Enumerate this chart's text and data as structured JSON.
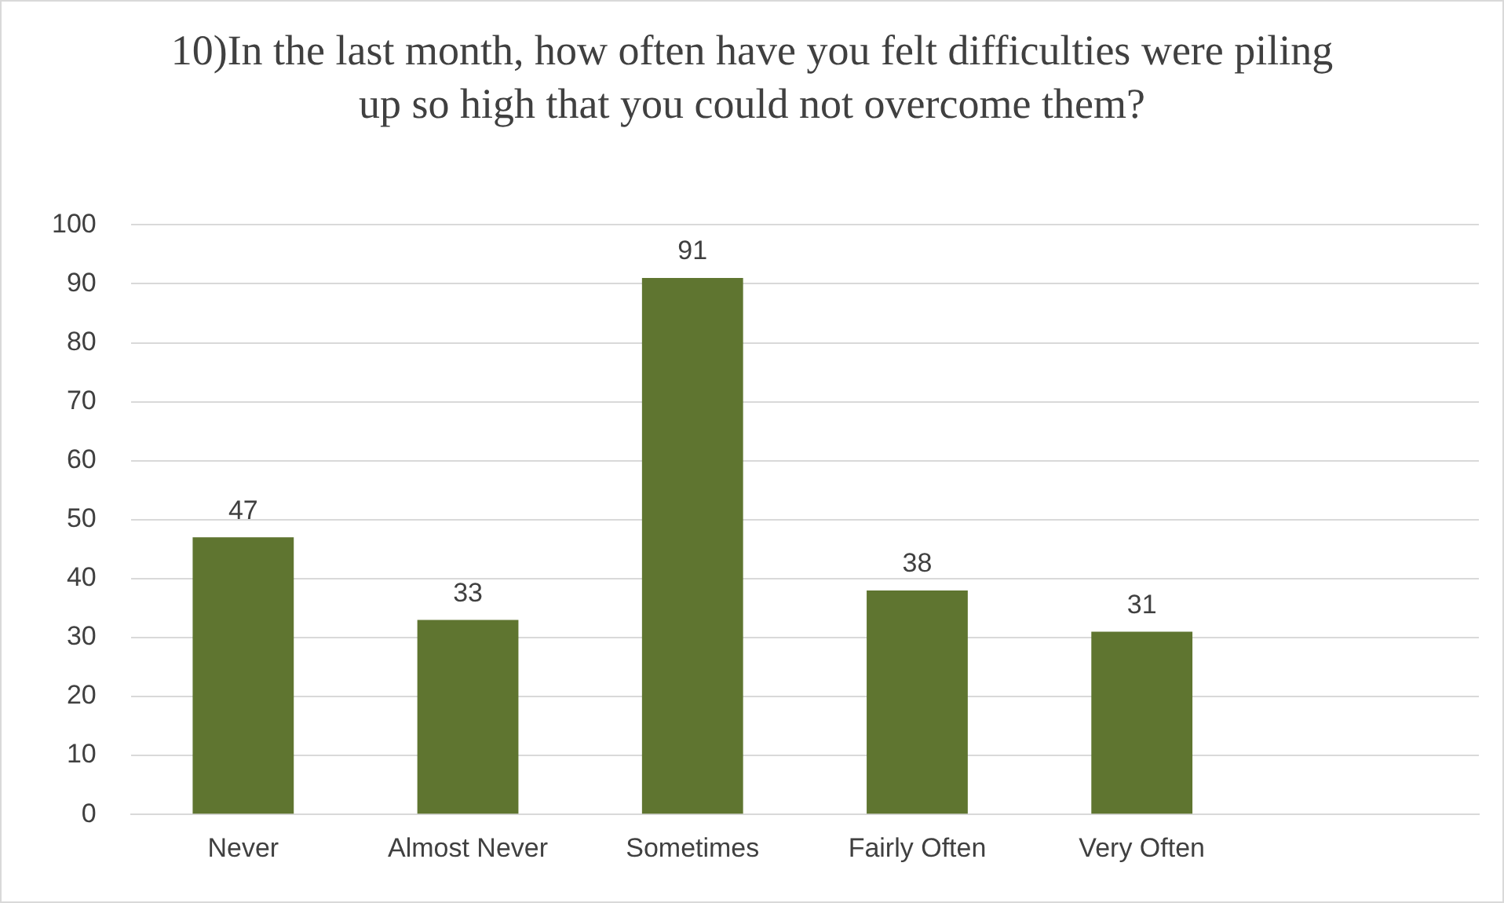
{
  "chart_data": {
    "type": "bar",
    "title": "10)In the last month, how often have you felt difficulties were piling up so high that you could not overcome them?",
    "categories": [
      "Never",
      "Almost Never",
      "Sometimes",
      "Fairly Often",
      "Very Often",
      null
    ],
    "values": [
      47,
      33,
      91,
      38,
      31,
      null
    ],
    "color": "#5f7530",
    "ylim": [
      0,
      100
    ],
    "yticks": [
      0,
      10,
      20,
      30,
      40,
      50,
      60,
      70,
      80,
      90,
      100
    ],
    "grid": "y",
    "legend": false,
    "data_labels": true
  }
}
